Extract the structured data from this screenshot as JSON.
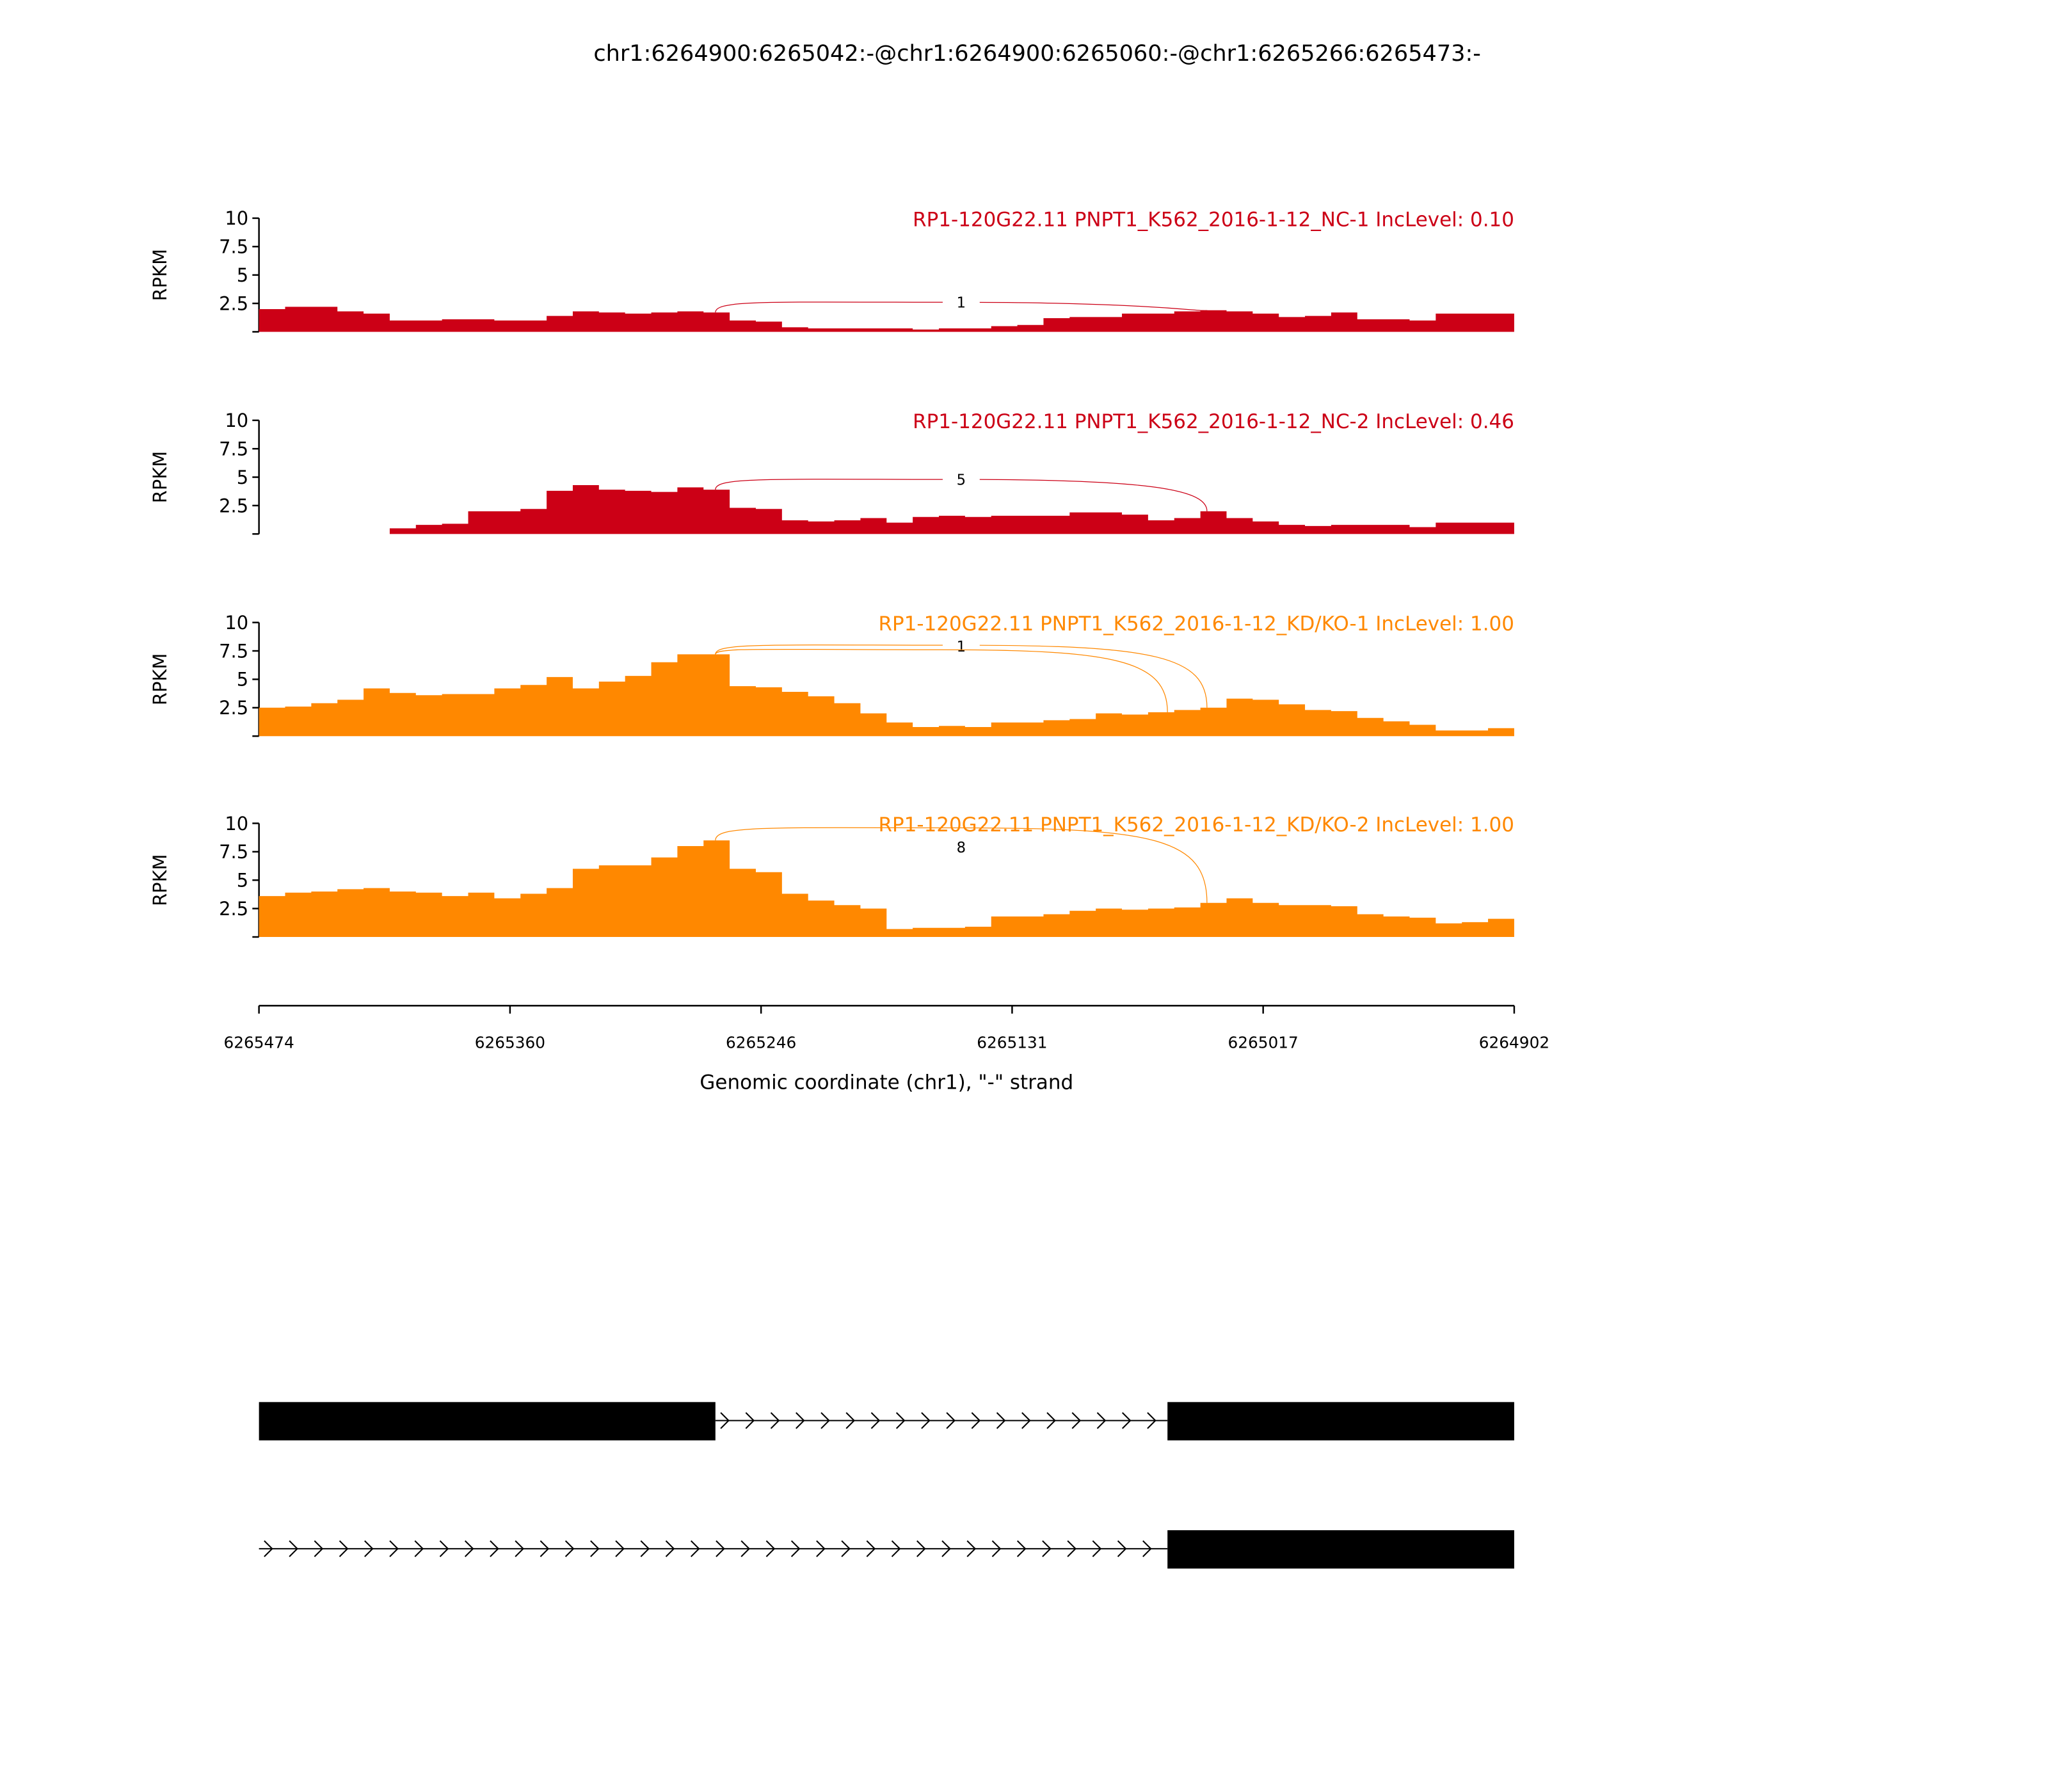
{
  "chart_data": {
    "type": "area",
    "title": "chr1:6264900:6265042:-@chr1:6264900:6265060:-@chr1:6265266:6265473:-",
    "xlabel": "Genomic coordinate (chr1), \"-\" strand",
    "ylabel": "RPKM",
    "xlim": [
      6265474,
      6264902
    ],
    "ylim": [
      0,
      10
    ],
    "xticks": [
      "6265474",
      "6265360",
      "6265246",
      "6265131",
      "6265017",
      "6264902"
    ],
    "yticks": [
      "10",
      "7.5",
      "5",
      "2.5"
    ],
    "coverage_step_bp": 12.04,
    "colors": {
      "NC": "#cc0016",
      "KD": "#ff8800"
    },
    "tracks": [
      {
        "title": "RP1-120G22.11 PNPT1_K562_2016-1-12_NC-1 IncLevel: 0.10",
        "group": "NC",
        "values": [
          2.0,
          2.2,
          2.2,
          1.8,
          1.6,
          1.0,
          1.0,
          1.1,
          1.1,
          1.0,
          1.0,
          1.4,
          1.8,
          1.7,
          1.6,
          1.7,
          1.8,
          1.7,
          1.0,
          0.9,
          0.4,
          0.3,
          0.3,
          0.3,
          0.3,
          0.2,
          0.3,
          0.3,
          0.5,
          0.6,
          1.2,
          1.3,
          1.3,
          1.6,
          1.6,
          1.8,
          1.9,
          1.8,
          1.6,
          1.3,
          1.4,
          1.7,
          1.1,
          1.1,
          1.0,
          1.6,
          1.6,
          1.6
        ],
        "junctions": [
          {
            "from": 6265266,
            "to": 6265042,
            "peak": 2.6,
            "label": "1"
          }
        ]
      },
      {
        "title": "RP1-120G22.11 PNPT1_K562_2016-1-12_NC-2 IncLevel: 0.46",
        "group": "NC",
        "values": [
          0,
          0,
          0,
          0,
          0,
          0.5,
          0.8,
          0.9,
          2.0,
          2.0,
          2.2,
          3.8,
          4.3,
          3.9,
          3.8,
          3.7,
          4.1,
          3.9,
          2.3,
          2.2,
          1.2,
          1.1,
          1.2,
          1.4,
          1.0,
          1.5,
          1.6,
          1.5,
          1.6,
          1.6,
          1.6,
          1.9,
          1.9,
          1.7,
          1.2,
          1.4,
          2.0,
          1.4,
          1.1,
          0.8,
          0.7,
          0.8,
          0.8,
          0.8,
          0.6,
          1.0,
          1.0,
          1.0
        ],
        "junctions": [
          {
            "from": 6265266,
            "to": 6265042,
            "peak": 4.8,
            "label": "5"
          }
        ]
      },
      {
        "title": "RP1-120G22.11 PNPT1_K562_2016-1-12_KD/KO-1 IncLevel: 1.00",
        "group": "KD",
        "values": [
          2.5,
          2.6,
          2.9,
          3.2,
          4.2,
          3.8,
          3.6,
          3.7,
          3.7,
          4.2,
          4.5,
          5.2,
          4.2,
          4.8,
          5.3,
          6.5,
          7.2,
          7.2,
          4.4,
          4.3,
          3.9,
          3.5,
          2.9,
          2.0,
          1.2,
          0.8,
          0.9,
          0.8,
          1.2,
          1.2,
          1.4,
          1.5,
          2.0,
          1.9,
          2.1,
          2.3,
          2.5,
          3.3,
          3.2,
          2.8,
          2.3,
          2.2,
          1.6,
          1.3,
          1.0,
          0.5,
          0.5,
          0.7
        ],
        "junctions": [
          {
            "from": 6265266,
            "to": 6265042,
            "peak": 8.0,
            "label": "1"
          },
          {
            "from": 6265266,
            "to": 6265060,
            "peak": 7.6,
            "label": ""
          }
        ]
      },
      {
        "title": "RP1-120G22.11 PNPT1_K562_2016-1-12_KD/KO-2 IncLevel: 1.00",
        "group": "KD",
        "values": [
          3.6,
          3.9,
          4.0,
          4.2,
          4.3,
          4.0,
          3.9,
          3.6,
          3.9,
          3.4,
          3.8,
          4.3,
          6.0,
          6.3,
          6.3,
          7.0,
          8.0,
          8.5,
          6.0,
          5.7,
          3.8,
          3.2,
          2.8,
          2.5,
          0.7,
          0.8,
          0.8,
          0.9,
          1.8,
          1.8,
          2.0,
          2.3,
          2.5,
          2.4,
          2.5,
          2.6,
          3.0,
          3.4,
          3.0,
          2.8,
          2.8,
          2.7,
          2.0,
          1.8,
          1.7,
          1.2,
          1.3,
          1.6
        ],
        "junctions": [
          {
            "from": 6265266,
            "to": 6265042,
            "peak": 9.6,
            "label": "8"
          }
        ]
      }
    ],
    "isoforms": [
      {
        "exons": [
          [
            6265474,
            6265266
          ],
          [
            6265060,
            6264902
          ]
        ]
      },
      {
        "exons": [
          [
            6265060,
            6264902
          ]
        ],
        "intron_from": 6265474
      }
    ]
  }
}
